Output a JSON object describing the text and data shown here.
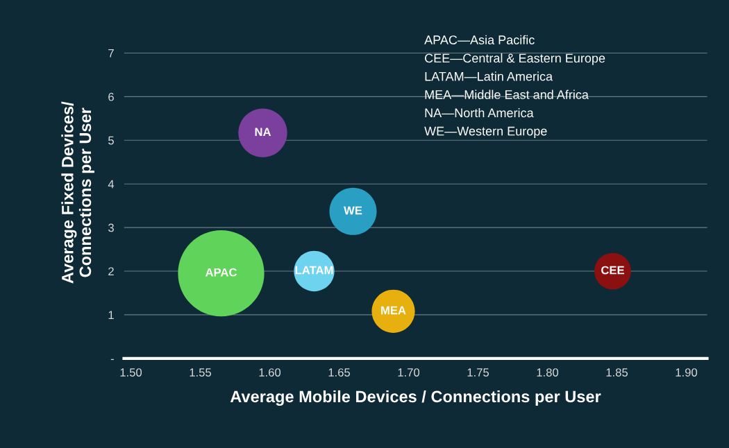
{
  "chart_data": {
    "type": "bubble",
    "xlabel": "Average Mobile Devices / Connections per User",
    "ylabel": "Average Fixed Devices/\nConnections per User",
    "xlim": [
      1.495,
      1.915
    ],
    "xticks": [
      {
        "value": 1.5,
        "label": "1.50"
      },
      {
        "value": 1.55,
        "label": "1.55"
      },
      {
        "value": 1.6,
        "label": "1.60"
      },
      {
        "value": 1.65,
        "label": "1.65"
      },
      {
        "value": 1.7,
        "label": "1.70"
      },
      {
        "value": 1.75,
        "label": "1.75"
      },
      {
        "value": 1.8,
        "label": "1.80"
      },
      {
        "value": 1.85,
        "label": "1.85"
      },
      {
        "value": 1.9,
        "label": "1.90"
      }
    ],
    "ylim": [
      0,
      7.6
    ],
    "yticks": [
      {
        "value": 0,
        "label": "-"
      },
      1,
      2,
      3,
      4,
      5,
      6,
      7
    ],
    "grid": "y",
    "series": [
      {
        "name": "APAC",
        "color": "#5fd35a",
        "x": [
          1.565
        ],
        "values": [
          1.95
        ],
        "sizes": [
          1
        ]
      },
      {
        "name": "NA",
        "color": "#7b3f9e",
        "x": [
          1.595
        ],
        "values": [
          5.17
        ],
        "sizes": [
          0.32
        ]
      },
      {
        "name": "WE",
        "color": "#2a9fc4",
        "x": [
          1.66
        ],
        "values": [
          3.37
        ],
        "sizes": [
          0.3
        ]
      },
      {
        "name": "LATAM",
        "color": "#6dd3ef",
        "x": [
          1.632
        ],
        "values": [
          2.0
        ],
        "sizes": [
          0.22
        ]
      },
      {
        "name": "MEA",
        "color": "#e8b00f",
        "x": [
          1.689
        ],
        "values": [
          1.08
        ],
        "sizes": [
          0.25
        ]
      },
      {
        "name": "CEE",
        "color": "#8b1010",
        "x": [
          1.847
        ],
        "values": [
          2.0
        ],
        "sizes": [
          0.18
        ]
      }
    ],
    "annotations": [
      "APAC—Asia Pacific",
      "CEE—Central & Eastern Europe",
      "LATAM—Latin America",
      "MEA—Middle East and Africa",
      "NA—North America",
      "WE—Western Europe"
    ]
  }
}
